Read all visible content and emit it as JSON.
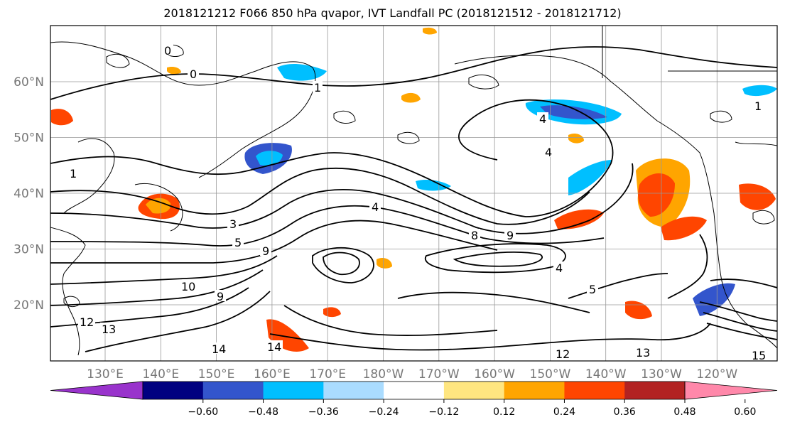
{
  "title": "2018121212 F066 850 hPa qvapor, IVT Landfall PC (2018121512 - 2018121712)",
  "map": {
    "lon_labels": [
      "130°E",
      "140°E",
      "150°E",
      "160°E",
      "170°E",
      "180°W",
      "170°W",
      "160°W",
      "150°W",
      "140°W",
      "130°W",
      "120°W"
    ],
    "lat_labels": [
      "60°N",
      "50°N",
      "40°N",
      "30°N",
      "20°N"
    ],
    "gridlines": true,
    "contour_labels": [
      "0",
      "0",
      "1",
      "1",
      "1",
      "3",
      "5",
      "9",
      "9",
      "10",
      "12",
      "13",
      "14",
      "14",
      "12",
      "13",
      "15",
      "4",
      "4",
      "4",
      "5",
      "4",
      "9",
      "8"
    ]
  },
  "colorbar": {
    "colors": [
      "#9933cc",
      "#000080",
      "#3355cc",
      "#00bfff",
      "#aadcff",
      "#ffffff",
      "#ffe680",
      "#ffa500",
      "#ff4500",
      "#b22222",
      "#ff88aa"
    ],
    "tick_labels": [
      "−0.60",
      "−0.48",
      "−0.36",
      "−0.24",
      "−0.12",
      "0.12",
      "0.24",
      "0.36",
      "0.48",
      "0.60"
    ],
    "extend": "both"
  }
}
